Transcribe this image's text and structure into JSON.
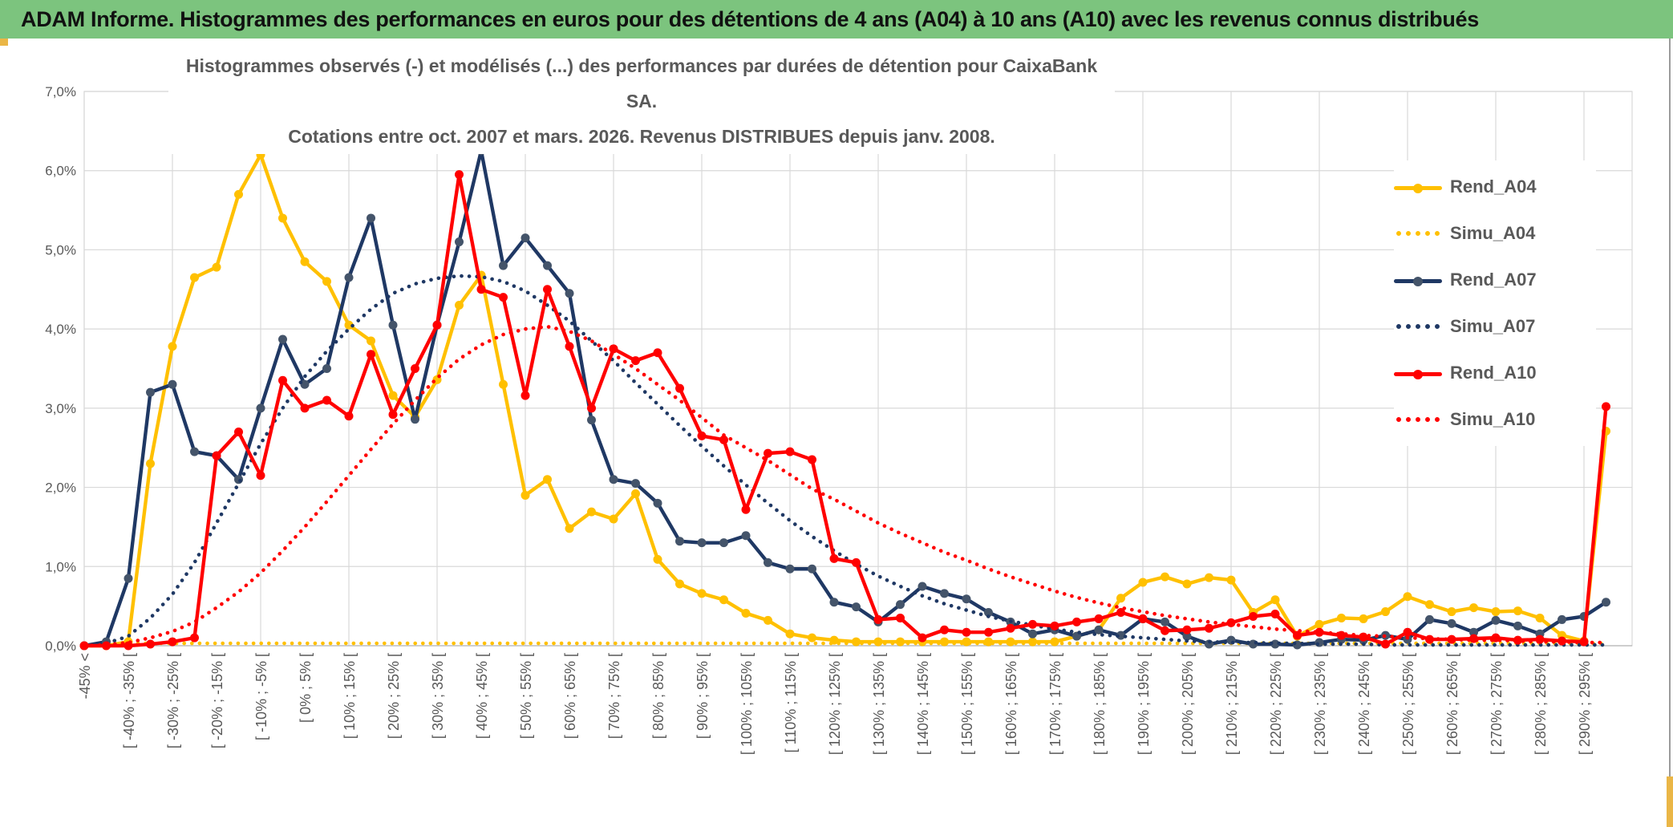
{
  "window": {
    "title": "ADAM Informe. Histogrammes des performances en euros pour des détentions de 4 ans (A04) à 10 ans (A10) avec les revenus connus distribués",
    "titlebar_color": "#7cc47e",
    "accent_color": "#eab646"
  },
  "chart": {
    "title_line1": "Histogrammes observés (-) et modélisés (...) des performances par durées de détention pour CaixaBank SA.",
    "title_line2": "Cotations entre oct. 2007 et mars. 2026. Revenus DISTRIBUES depuis janv. 2008.",
    "text_color": "#595959",
    "gridline_color": "#D9D9D9",
    "y_ticks": [
      "0,0%",
      "1,0%",
      "2,0%",
      "3,0%",
      "4,0%",
      "5,0%",
      "6,0%",
      "7,0%"
    ]
  },
  "chart_data": {
    "type": "line",
    "title": "Histogrammes observés (-) et modélisés (...) des performances par durées de détention pour CaixaBank SA. Cotations entre oct. 2007 et mars. 2026. Revenus DISTRIBUES depuis janv. 2008.",
    "xlabel": "",
    "ylabel": "",
    "ylim": [
      0,
      7
    ],
    "y_unit": "%",
    "grid": true,
    "legend_position": "right-inside",
    "n_points": 70,
    "x_axis": {
      "labels_every_n_points": 2,
      "rotation": -90,
      "bin_width_pct": 5
    },
    "categories": [
      "-45% <",
      "[ -40% ; -35% [",
      "[ -30% ; -25% [",
      "[ -20% ; -15% [",
      "[ -10% ; -5% [",
      "[ 0% ; 5% [",
      "[ 10% ; 15% [",
      "[ 20% ; 25% [",
      "[ 30% ; 35% [",
      "[ 40% ; 45% [",
      "[ 50% ; 55% [",
      "[ 60% ; 65% [",
      "[ 70% ; 75% [",
      "[ 80% ; 85% [",
      "[ 90% ; 95% [",
      "[ 100% ; 105% [",
      "[ 110% ; 115% [",
      "[ 120% ; 125% [",
      "[ 130% ; 135% [",
      "[ 140% ; 145% [",
      "[ 150% ; 155% [",
      "[ 160% ; 165% [",
      "[ 170% ; 175% [",
      "[ 180% ; 185% [",
      "[ 190% ; 195% [",
      "[ 200% ; 205% [",
      "[ 210% ; 215% [",
      "[ 220% ; 225% [",
      "[ 230% ; 235% [",
      "[ 240% ; 245% [",
      "[ 250% ; 255% [",
      "[ 260% ; 265% [",
      "[ 270% ; 275% [",
      "[ 280% ; 285% [",
      "[ 290% ; 295% ["
    ],
    "series": [
      {
        "name": "Rend_A04",
        "color": "#FFC000",
        "style": "solid",
        "marker": true,
        "values": [
          0,
          0,
          0.05,
          2.3,
          3.78,
          4.65,
          4.78,
          5.7,
          6.2,
          5.4,
          4.85,
          4.6,
          4.05,
          3.85,
          3.16,
          2.89,
          3.36,
          4.3,
          4.68,
          3.3,
          1.9,
          2.1,
          1.48,
          1.69,
          1.6,
          1.92,
          1.09,
          0.78,
          0.66,
          0.58,
          0.41,
          0.32,
          0.15,
          0.1,
          0.07,
          0.05,
          0.05,
          0.05,
          0.05,
          0.05,
          0.05,
          0.05,
          0.05,
          0.05,
          0.05,
          0.12,
          0.2,
          0.6,
          0.8,
          0.87,
          0.78,
          0.86,
          0.83,
          0.42,
          0.58,
          0.12,
          0.27,
          0.35,
          0.34,
          0.43,
          0.62,
          0.52,
          0.43,
          0.48,
          0.43,
          0.44,
          0.35,
          0.13,
          0.06,
          2.71
        ]
      },
      {
        "name": "Simu_A04",
        "color": "#FFC000",
        "style": "dotted",
        "marker": false,
        "values": [
          0,
          0,
          0.03,
          0.03,
          0.03,
          0.03,
          0.03,
          0.03,
          0.03,
          0.03,
          0.03,
          0.03,
          0.03,
          0.03,
          0.03,
          0.03,
          0.03,
          0.03,
          0.03,
          0.03,
          0.03,
          0.03,
          0.03,
          0.03,
          0.03,
          0.03,
          0.03,
          0.03,
          0.03,
          0.03,
          0.03,
          0.03,
          0.03,
          0.03,
          0.03,
          0.03,
          0.03,
          0.03,
          0.03,
          0.03,
          0.03,
          0.03,
          0.03,
          0.03,
          0.03,
          0.03,
          0.03,
          0.03,
          0.03,
          0.03,
          0.03,
          0.03,
          0.03,
          0.03,
          0.03,
          0.03,
          0.03,
          0.03,
          0.03,
          0.03,
          0.03,
          0.03,
          0.03,
          0.03,
          0.03,
          0.03,
          0.03,
          0.03,
          0.03,
          0.03
        ]
      },
      {
        "name": "Rend_A07",
        "color": "#1F3864",
        "marker_color": "#44546A",
        "style": "solid",
        "marker": true,
        "values": [
          0,
          0.05,
          0.85,
          3.2,
          3.3,
          2.45,
          2.4,
          2.1,
          3.0,
          3.87,
          3.3,
          3.5,
          4.65,
          5.4,
          4.05,
          2.86,
          4.05,
          5.1,
          6.25,
          4.8,
          5.15,
          4.8,
          4.45,
          2.85,
          2.1,
          2.05,
          1.8,
          1.32,
          1.3,
          1.3,
          1.39,
          1.05,
          0.97,
          0.97,
          0.55,
          0.49,
          0.3,
          0.52,
          0.75,
          0.66,
          0.59,
          0.42,
          0.3,
          0.15,
          0.2,
          0.12,
          0.2,
          0.13,
          0.34,
          0.3,
          0.12,
          0.02,
          0.07,
          0.02,
          0.02,
          0.01,
          0.04,
          0.08,
          0.07,
          0.13,
          0.08,
          0.33,
          0.28,
          0.17,
          0.32,
          0.25,
          0.15,
          0.33,
          0.37,
          0.55
        ]
      },
      {
        "name": "Simu_A07",
        "color": "#1F3864",
        "style": "dotted",
        "marker": false,
        "values": [
          0,
          0.03,
          0.12,
          0.35,
          0.65,
          1.05,
          1.55,
          2.05,
          2.55,
          3.0,
          3.4,
          3.72,
          4.0,
          4.25,
          4.45,
          4.57,
          4.64,
          4.67,
          4.66,
          4.6,
          4.48,
          4.3,
          4.1,
          3.85,
          3.6,
          3.32,
          3.05,
          2.78,
          2.52,
          2.27,
          2.03,
          1.8,
          1.58,
          1.38,
          1.2,
          1.03,
          0.88,
          0.75,
          0.63,
          0.53,
          0.45,
          0.37,
          0.31,
          0.26,
          0.21,
          0.17,
          0.14,
          0.12,
          0.1,
          0.08,
          0.06,
          0.05,
          0.04,
          0.04,
          0.03,
          0.03,
          0.02,
          0.02,
          0.02,
          0.01,
          0.01,
          0.01,
          0.01,
          0.01,
          0.01,
          0.01,
          0.01,
          0.01,
          0.01,
          0.01
        ]
      },
      {
        "name": "Rend_A10",
        "color": "#FF0000",
        "style": "solid",
        "marker": true,
        "values": [
          0,
          0,
          0,
          0.02,
          0.05,
          0.1,
          2.4,
          2.7,
          2.15,
          3.35,
          3.0,
          3.1,
          2.9,
          3.68,
          2.92,
          3.5,
          4.05,
          5.95,
          4.5,
          4.4,
          3.16,
          4.5,
          3.78,
          3.0,
          3.75,
          3.6,
          3.7,
          3.25,
          2.65,
          2.6,
          1.72,
          2.43,
          2.45,
          2.35,
          1.1,
          1.05,
          0.33,
          0.35,
          0.1,
          0.2,
          0.17,
          0.17,
          0.22,
          0.27,
          0.25,
          0.3,
          0.34,
          0.42,
          0.34,
          0.19,
          0.2,
          0.22,
          0.29,
          0.37,
          0.4,
          0.13,
          0.17,
          0.13,
          0.11,
          0.02,
          0.17,
          0.08,
          0.08,
          0.09,
          0.1,
          0.07,
          0.08,
          0.06,
          0.05,
          3.02
        ]
      },
      {
        "name": "Simu_A10",
        "color": "#FF0000",
        "style": "dotted",
        "marker": false,
        "values": [
          0,
          0.01,
          0.04,
          0.1,
          0.18,
          0.3,
          0.48,
          0.68,
          0.92,
          1.2,
          1.5,
          1.82,
          2.15,
          2.48,
          2.8,
          3.1,
          3.38,
          3.62,
          3.8,
          3.93,
          4.0,
          4.03,
          3.97,
          3.85,
          3.68,
          3.5,
          3.3,
          3.1,
          2.88,
          2.66,
          2.5,
          2.34,
          2.16,
          1.98,
          1.85,
          1.7,
          1.55,
          1.42,
          1.3,
          1.18,
          1.08,
          0.97,
          0.87,
          0.78,
          0.69,
          0.61,
          0.54,
          0.48,
          0.43,
          0.38,
          0.34,
          0.3,
          0.27,
          0.24,
          0.21,
          0.19,
          0.17,
          0.15,
          0.13,
          0.12,
          0.1,
          0.09,
          0.08,
          0.07,
          0.07,
          0.06,
          0.05,
          0.05,
          0.04,
          0.04
        ]
      }
    ]
  }
}
